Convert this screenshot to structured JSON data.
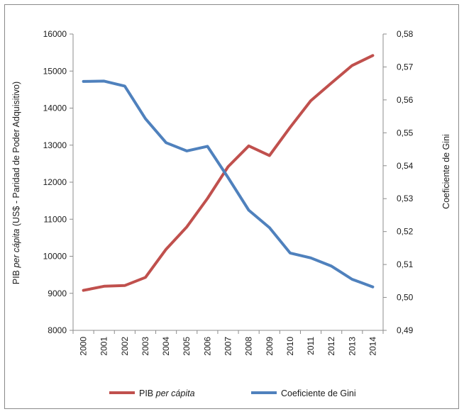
{
  "chart_data": {
    "type": "line",
    "x": [
      "2000",
      "2001",
      "2002",
      "2003",
      "2004",
      "2005",
      "2006",
      "2007",
      "2008",
      "2009",
      "2010",
      "2011",
      "2012",
      "2013",
      "2014"
    ],
    "series": [
      {
        "name": "PIB per cápita",
        "name_prefix": "PIB ",
        "name_italic": "per cápita",
        "axis": "left",
        "color": "#c0504d",
        "values": [
          9080,
          9190,
          9210,
          9430,
          10190,
          10790,
          11560,
          12420,
          12980,
          12720,
          13480,
          14200,
          14680,
          15150,
          15420
        ]
      },
      {
        "name": "Coeficiente de Gini",
        "axis": "right",
        "color": "#4f81bd",
        "values": [
          0.5656,
          0.5657,
          0.5642,
          0.5543,
          0.547,
          0.5445,
          0.5459,
          0.5364,
          0.5265,
          0.5212,
          0.5135,
          0.512,
          0.5095,
          0.5055,
          0.5032
        ]
      }
    ],
    "ylim_left": [
      8000,
      16000
    ],
    "yticks_left": [
      "8000",
      "9000",
      "10000",
      "11000",
      "12000",
      "13000",
      "14000",
      "15000",
      "16000"
    ],
    "ylim_right": [
      0.49,
      0.58
    ],
    "yticks_right": [
      "0,49",
      "0,50",
      "0,51",
      "0,52",
      "0,53",
      "0,54",
      "0,55",
      "0,56",
      "0,57",
      "0,58"
    ],
    "ylabel_left_prefix": "PIB ",
    "ylabel_left_italic": "per cápita",
    "ylabel_left_suffix": " (US$ - Paridad de Poder Adquisitivo)",
    "ylabel_right": "Coeficiente de Gini",
    "grid": false,
    "legend_position": "bottom"
  }
}
